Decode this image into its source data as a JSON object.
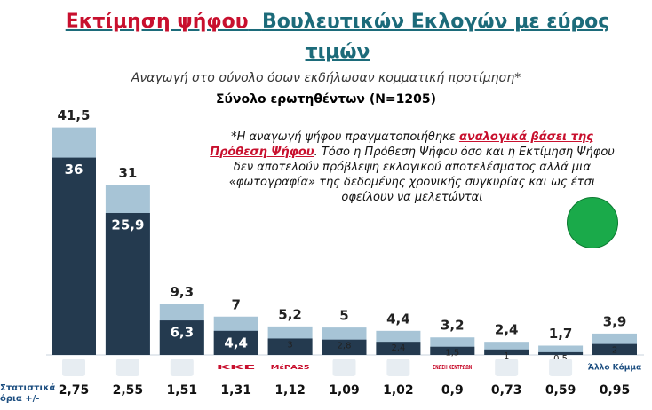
{
  "chart_data": {
    "type": "range_bar",
    "title_parts": [
      "Εκτίμηση ψήφου",
      "Βουλευτικών Εκλογών με εύρος τιμών"
    ],
    "subtitle": "Αναγωγή στο σύνολο όσων εκδήλωσαν κομματική προτίμηση*",
    "sample": "Σύνολο ερωτηθέντων (N=1205)",
    "note_parts": [
      "*Η αναγωγή ψήφου πραγματοποιήθηκε ",
      "αναλογικά βάσει της Πρόθεση Ψήφου",
      ". Τόσο η Πρόθεση Ψήφου όσο και η Εκτίμηση Ψήφου δεν αποτελούν πρόβλεψη εκλογικού αποτελέσματος αλλά μια «φωτογραφία» της δεδομένης χρονικής συγκυρίας και ως έτσι οφείλουν να μελετώνται"
    ],
    "categories": [
      null,
      null,
      null,
      "ΚΚΕ",
      "ΜέΡΑ25",
      null,
      null,
      "ΕΝΩΣΗ ΚΕΝΤΡΩΩΝ",
      null,
      null,
      "Άλλο Κόμμα"
    ],
    "series": [
      {
        "color": "#a7c4d6",
        "values": [
          41.5,
          31,
          9.3,
          7,
          5.2,
          5,
          4.4,
          3.2,
          2.4,
          1.7,
          3.9
        ],
        "value_labels": [
          "41,5",
          "31",
          "9,3",
          "7",
          "5,2",
          "5",
          "4,4",
          "3,2",
          "2,4",
          "1,7",
          "3,9"
        ]
      },
      {
        "color": "#243a4f",
        "values": [
          36,
          25.9,
          6.3,
          4.4,
          3,
          2.8,
          2.4,
          1.5,
          1,
          0.5,
          2
        ],
        "value_labels": [
          "36",
          "25,9",
          "6,3",
          "4,4",
          "3",
          "2,8",
          "2,4",
          "1,5",
          "1",
          "0,5",
          "2"
        ]
      }
    ],
    "stat_limits": {
      "label": "Στατιστικά όρια +/-",
      "values": [
        2.75,
        2.55,
        1.51,
        1.31,
        1.12,
        1.09,
        1.02,
        0.9,
        0.73,
        0.59,
        0.95
      ],
      "value_labels": [
        "2,75",
        "2,55",
        "1,51",
        "1,31",
        "1,12",
        "1,09",
        "1,02",
        "0,9",
        "0,73",
        "0,59",
        "0,95"
      ]
    },
    "ylim": [
      0,
      45
    ]
  }
}
